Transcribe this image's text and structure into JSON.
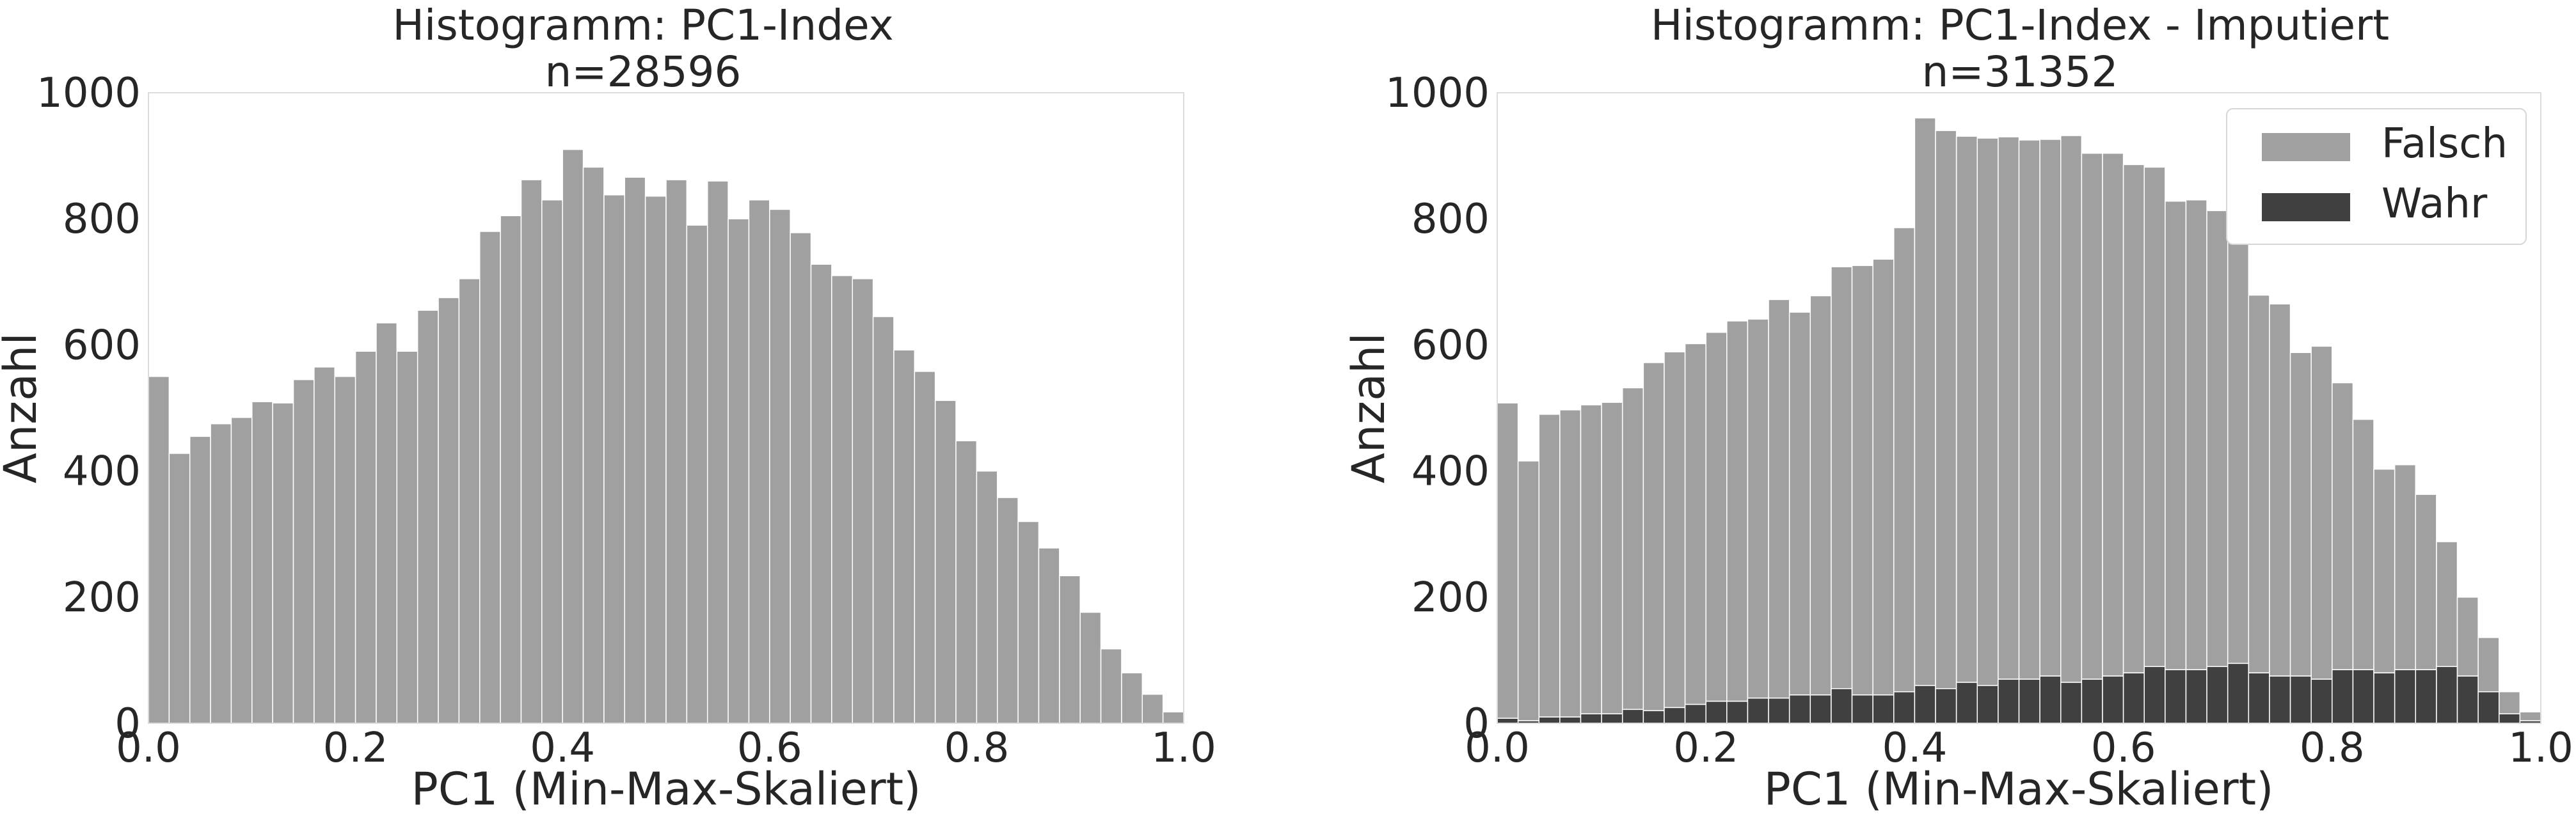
{
  "chart_data": [
    {
      "type": "histogram",
      "title": "Histogramm: PC1-Index",
      "subtitle": "n=28596",
      "xlabel": "PC1 (Min-Max-Skaliert)",
      "ylabel": "Anzahl",
      "xlim": [
        0.0,
        1.0
      ],
      "ylim": [
        0,
        1000
      ],
      "xticks": [
        "0.0",
        "0.2",
        "0.4",
        "0.6",
        "0.8",
        "1.0"
      ],
      "yticks": [
        "0",
        "200",
        "400",
        "600",
        "800",
        "1000"
      ],
      "grid": false,
      "bin_width": 0.02,
      "x": [
        0.0,
        0.02,
        0.04,
        0.06,
        0.08,
        0.1,
        0.12,
        0.14,
        0.16,
        0.18,
        0.2,
        0.22,
        0.24,
        0.26,
        0.28,
        0.3,
        0.32,
        0.34,
        0.36,
        0.38,
        0.4,
        0.42,
        0.44,
        0.46,
        0.48,
        0.5,
        0.52,
        0.54,
        0.56,
        0.58,
        0.6,
        0.62,
        0.64,
        0.66,
        0.68,
        0.7,
        0.72,
        0.74,
        0.76,
        0.78,
        0.8,
        0.82,
        0.84,
        0.86,
        0.88,
        0.9,
        0.92,
        0.94,
        0.96,
        0.98
      ],
      "series": [
        {
          "color": "#a0a0a0",
          "values": [
            550,
            428,
            455,
            475,
            485,
            510,
            508,
            545,
            565,
            550,
            590,
            635,
            590,
            655,
            675,
            705,
            780,
            805,
            862,
            830,
            910,
            882,
            838,
            866,
            836,
            862,
            790,
            860,
            800,
            830,
            815,
            778,
            728,
            710,
            705,
            645,
            592,
            558,
            512,
            448,
            400,
            358,
            320,
            278,
            234,
            176,
            118,
            80,
            46,
            18
          ]
        }
      ]
    },
    {
      "type": "histogram",
      "stacked": true,
      "title": "Histogramm: PC1-Index - Imputiert",
      "subtitle": "n=31352",
      "xlabel": "PC1 (Min-Max-Skaliert)",
      "ylabel": "Anzahl",
      "xlim": [
        0.0,
        1.0
      ],
      "ylim": [
        0,
        1000
      ],
      "xticks": [
        "0.0",
        "0.2",
        "0.4",
        "0.6",
        "0.8",
        "1.0"
      ],
      "yticks": [
        "0",
        "200",
        "400",
        "600",
        "800",
        "1000"
      ],
      "grid": false,
      "legend": "top-right",
      "bin_width": 0.02,
      "x": [
        0.0,
        0.02,
        0.04,
        0.06,
        0.08,
        0.1,
        0.12,
        0.14,
        0.16,
        0.18,
        0.2,
        0.22,
        0.24,
        0.26,
        0.28,
        0.3,
        0.32,
        0.34,
        0.36,
        0.38,
        0.4,
        0.42,
        0.44,
        0.46,
        0.48,
        0.5,
        0.52,
        0.54,
        0.56,
        0.58,
        0.6,
        0.62,
        0.64,
        0.66,
        0.68,
        0.7,
        0.72,
        0.74,
        0.76,
        0.78,
        0.8,
        0.82,
        0.84,
        0.86,
        0.88,
        0.9,
        0.92,
        0.94,
        0.96,
        0.98
      ],
      "series": [
        {
          "name": "Falsch",
          "color": "#a0a0a0",
          "values": [
            500,
            412,
            480,
            487,
            490,
            494,
            510,
            552,
            564,
            572,
            585,
            603,
            601,
            632,
            607,
            633,
            669,
            681,
            691,
            736,
            900,
            885,
            866,
            868,
            860,
            855,
            851,
            867,
            834,
            829,
            806,
            792,
            743,
            745,
            723,
            704,
            599,
            590,
            513,
            528,
            455,
            397,
            323,
            325,
            278,
            198,
            125,
            86,
            35,
            14
          ]
        },
        {
          "name": "Wahr",
          "color": "#404040",
          "values": [
            8,
            4,
            10,
            10,
            15,
            15,
            22,
            20,
            25,
            30,
            35,
            35,
            40,
            40,
            45,
            45,
            55,
            45,
            45,
            50,
            60,
            55,
            65,
            60,
            70,
            70,
            75,
            65,
            70,
            75,
            80,
            90,
            85,
            85,
            90,
            95,
            80,
            75,
            75,
            70,
            85,
            85,
            80,
            85,
            85,
            90,
            75,
            50,
            15,
            4
          ]
        }
      ]
    }
  ]
}
